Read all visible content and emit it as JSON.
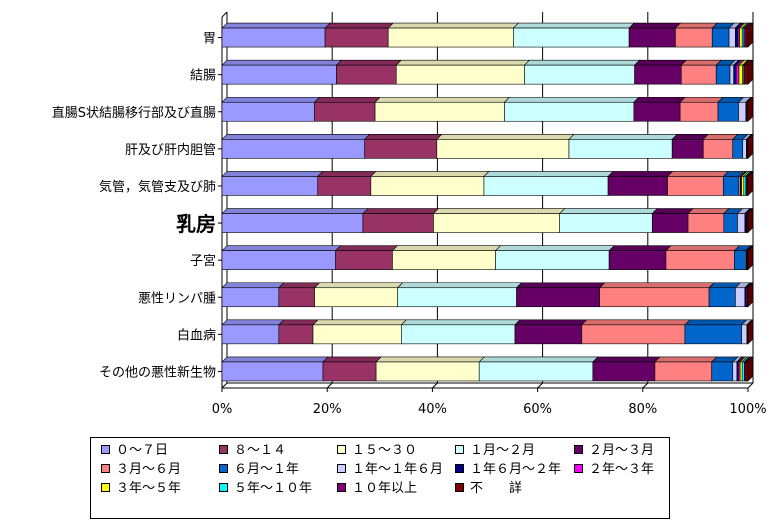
{
  "chart_data": {
    "type": "bar",
    "orientation": "horizontal",
    "stacked": "percent",
    "categories": [
      "胃",
      "結腸",
      "直腸S状結腸移行部及び直腸",
      "肝及び肝内胆管",
      "気管，気管支及び肺",
      "乳房",
      "子宮",
      "悪性リンパ腫",
      "白血病",
      "その他の悪性新生物"
    ],
    "emphasized_category": "乳房",
    "xlim": [
      0,
      100
    ],
    "xticks": [
      "0%",
      "20%",
      "40%",
      "60%",
      "80%",
      "100%"
    ],
    "grid": "vertical",
    "legend_position": "bottom",
    "series": [
      {
        "name": "０～７日",
        "color": "#9999ff",
        "values": [
          19.6,
          21.6,
          17.6,
          27.1,
          18.2,
          26.8,
          21.6,
          10.8,
          10.8,
          19.2
        ]
      },
      {
        "name": "８～１４",
        "color": "#993366",
        "values": [
          12.0,
          11.3,
          11.5,
          13.7,
          10.1,
          13.4,
          10.8,
          6.8,
          6.5,
          10.1
        ]
      },
      {
        "name": "１５～３０",
        "color": "#ffffcc",
        "values": [
          23.8,
          24.2,
          24.6,
          25.1,
          21.5,
          24.0,
          19.6,
          15.8,
          16.8,
          19.6
        ]
      },
      {
        "name": "１月～２月",
        "color": "#ccffff",
        "values": [
          22.0,
          20.8,
          24.6,
          19.6,
          23.6,
          17.6,
          21.6,
          22.6,
          21.6,
          21.6
        ]
      },
      {
        "name": "２月～３月",
        "color": "#660066",
        "values": [
          8.8,
          8.8,
          8.8,
          5.9,
          11.3,
          6.8,
          10.8,
          15.8,
          12.7,
          11.8
        ]
      },
      {
        "name": "３月～６月",
        "color": "#ff8080",
        "values": [
          7.0,
          6.6,
          7.2,
          5.6,
          10.6,
          6.8,
          13.0,
          20.8,
          19.6,
          10.8
        ]
      },
      {
        "name": "６月～１年",
        "color": "#0066cc",
        "values": [
          3.2,
          2.6,
          3.9,
          1.9,
          2.9,
          2.6,
          2.1,
          5.0,
          10.8,
          4.0
        ]
      },
      {
        "name": "１年～１年６月",
        "color": "#ccccff",
        "values": [
          1.2,
          0.7,
          1.4,
          0.7,
          0.3,
          1.4,
          0.2,
          1.8,
          1.0,
          0.8
        ]
      },
      {
        "name": "１年６月～２年",
        "color": "#000080",
        "values": [
          0.5,
          0.5,
          0.1,
          0.1,
          0.1,
          0.3,
          0.1,
          0.3,
          0.1,
          0.3
        ]
      },
      {
        "name": "２年～３年",
        "color": "#ff00ff",
        "values": [
          0.3,
          0.5,
          0.1,
          0.1,
          0.2,
          0.1,
          0.1,
          0.2,
          0.0,
          0.3
        ]
      },
      {
        "name": "３年～５年",
        "color": "#ffff00",
        "values": [
          0.5,
          0.7,
          0.0,
          0.0,
          0.4,
          0.0,
          0.0,
          0.0,
          0.0,
          0.4
        ]
      },
      {
        "name": "５年～１０年",
        "color": "#00ffff",
        "values": [
          0.3,
          0.2,
          0.0,
          0.0,
          0.4,
          0.0,
          0.0,
          0.0,
          0.0,
          0.4
        ]
      },
      {
        "name": "１０年以上",
        "color": "#800080",
        "values": [
          0.4,
          0.2,
          0.0,
          0.0,
          0.2,
          0.0,
          0.0,
          0.0,
          0.0,
          0.3
        ]
      },
      {
        "name": "不　　詳",
        "color": "#800000",
        "values": [
          0.4,
          0.6,
          0.2,
          0.1,
          0.2,
          0.2,
          0.1,
          0.1,
          0.1,
          0.4
        ]
      }
    ]
  }
}
